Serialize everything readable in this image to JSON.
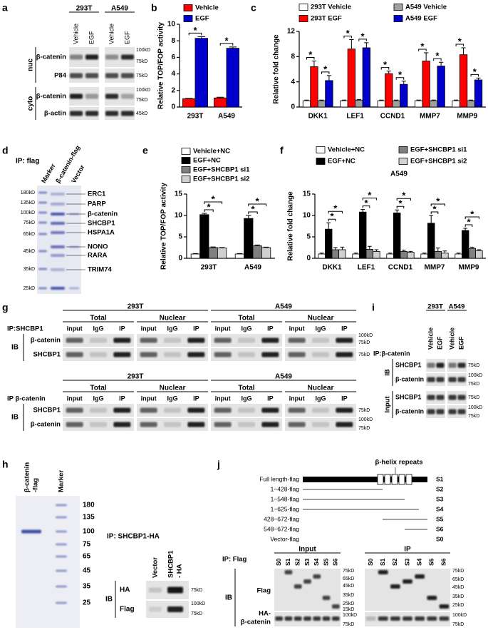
{
  "panel_letters": [
    "a",
    "b",
    "c",
    "d",
    "e",
    "f",
    "g",
    "h",
    "i",
    "j"
  ],
  "chart_data": [
    {
      "type": "bar",
      "ylabel": "Relative TOP/FOP activity",
      "categories": [
        "293T",
        "A549"
      ],
      "series": [
        {
          "name": "Vehicle",
          "color": "#ff0000",
          "values": [
            1,
            1.1
          ],
          "errors": [
            0.05,
            0.08
          ]
        },
        {
          "name": "EGF",
          "color": "#0000cc",
          "values": [
            8.3,
            7.1
          ],
          "errors": [
            0.2,
            0.15
          ]
        }
      ],
      "ylim": [
        0,
        10
      ],
      "yticks": [
        0,
        2,
        4,
        6,
        8,
        10
      ],
      "annotations": [
        "*",
        "*"
      ]
    },
    {
      "type": "bar",
      "ylabel": "Relative fold change",
      "categories": [
        "DKK1",
        "LEF1",
        "CCND1",
        "MMP7",
        "MMP9"
      ],
      "series": [
        {
          "name": "293T Vehicle",
          "color": "#ffffff",
          "values": [
            1,
            1,
            1,
            1,
            1
          ],
          "errors": [
            0.1,
            0.1,
            0.1,
            0.1,
            0.1
          ]
        },
        {
          "name": "293T EGF",
          "color": "#ff0000",
          "values": [
            6.4,
            9.2,
            5.3,
            7.3,
            8.3
          ],
          "errors": [
            0.9,
            1.5,
            0.4,
            1.3,
            1.1
          ]
        },
        {
          "name": "A549 Vehicle",
          "color": "#a0a0a0",
          "values": [
            1,
            1.1,
            1,
            1,
            1
          ],
          "errors": [
            0.1,
            0.1,
            0.1,
            0.1,
            0.1
          ]
        },
        {
          "name": "A549 EGF",
          "color": "#0000cc",
          "values": [
            4.2,
            9.4,
            3.6,
            6.5,
            4.3
          ],
          "errors": [
            0.8,
            0.8,
            0.5,
            0.6,
            0.3
          ]
        }
      ],
      "ylim": [
        0,
        12
      ],
      "yticks": [
        0,
        4,
        8,
        12
      ],
      "annotations": [
        "*",
        "*",
        "*",
        "*",
        "*",
        "*",
        "*",
        "*",
        "*",
        "*"
      ]
    },
    {
      "type": "bar",
      "ylabel": "Relative TOP/FOP  activity",
      "categories": [
        "293T",
        "A549"
      ],
      "series": [
        {
          "name": "Vehicle+NC",
          "color": "#ffffff",
          "values": [
            1,
            1
          ],
          "errors": [
            0.1,
            0.1
          ]
        },
        {
          "name": "EGF+NC",
          "color": "#000000",
          "values": [
            10.2,
            9.3
          ],
          "errors": [
            0.3,
            0.7
          ]
        },
        {
          "name": "EGF+SHCBP1 si1",
          "color": "#808080",
          "values": [
            2.5,
            2.9
          ],
          "errors": [
            0.15,
            0.2
          ]
        },
        {
          "name": "EGF+SHCBP1 si2",
          "color": "#d0d0d0",
          "values": [
            2.4,
            2.5
          ],
          "errors": [
            0.1,
            0.1
          ]
        }
      ],
      "ylim": [
        0,
        15
      ],
      "yticks": [
        0,
        5,
        10,
        15
      ],
      "annotations": [
        "*",
        "*",
        "*",
        "*"
      ]
    },
    {
      "type": "bar",
      "title": "A549",
      "ylabel": "Relative fold change",
      "categories": [
        "DKK1",
        "LEF1",
        "CCND1",
        "MMP7",
        "MMP9"
      ],
      "series": [
        {
          "name": "Vehicle+NC",
          "color": "#ffffff",
          "values": [
            1,
            1,
            1,
            1,
            1
          ],
          "errors": [
            0.2,
            0.2,
            0.2,
            0.2,
            0.2
          ]
        },
        {
          "name": "EGF+NC",
          "color": "#000000",
          "values": [
            6.8,
            10.8,
            10.6,
            8.2,
            6.5
          ],
          "errors": [
            1.5,
            0.6,
            0.7,
            1.8,
            0.5
          ]
        },
        {
          "name": "EGF+SHCBP1 si1",
          "color": "#808080",
          "values": [
            2,
            2.1,
            1.6,
            1.6,
            2.3
          ],
          "errors": [
            0.5,
            0.7,
            0.3,
            0.8,
            0.3
          ]
        },
        {
          "name": "EGF+SHCBP1 si2",
          "color": "#d0d0d0",
          "values": [
            2,
            1.6,
            1.4,
            1.2,
            1.8
          ],
          "errors": [
            0.6,
            0.4,
            0.2,
            0.5,
            0.2
          ]
        }
      ],
      "ylim": [
        0,
        15
      ],
      "yticks": [
        0,
        5,
        10,
        15
      ],
      "annotations": [
        "*",
        "*",
        "*",
        "*",
        "*",
        "*",
        "*",
        "*",
        "*",
        "*"
      ]
    }
  ],
  "panels": {
    "a": {
      "cell_lines": [
        "293T",
        "A549"
      ],
      "lanes": [
        "Vehicle",
        "EGF",
        "Vehicle",
        "EGF"
      ],
      "fractions": [
        "nuc",
        "cyto"
      ],
      "rows": [
        "β-catenin",
        "P84",
        "β-catenin",
        "β-actin"
      ],
      "markers": [
        "100kD",
        "75kD",
        "75kD",
        "100kD",
        "75kD",
        "45kD"
      ]
    },
    "d": {
      "ip": "IP: flag",
      "lanes": [
        "Marker",
        "β-catenin-flag",
        "Vector"
      ],
      "markers": [
        "180kD",
        "135kD",
        "100kD",
        "75kD",
        "65kD",
        "45kD",
        "35kD",
        "25kD"
      ],
      "proteins": [
        "ERC1",
        "PARP",
        "β-catenin",
        "SHCBP1",
        "HSPA1A",
        "NONO",
        "RARA",
        "TRIM74"
      ]
    },
    "g": {
      "top": {
        "cell_lines": [
          "293T",
          "A549"
        ],
        "fractions": [
          "Total",
          "Nuclear",
          "Total",
          "Nuclear"
        ],
        "ip": "IP:SHCBP1",
        "lanes": [
          "input",
          "IgG",
          "IP",
          "input",
          "IgG",
          "IP",
          "input",
          "IgG",
          "IP",
          "input",
          "IgG",
          "IP"
        ],
        "ib": "IB",
        "rows": [
          "β-catenin",
          "SHCBP1"
        ],
        "markers": [
          "100kD",
          "75kD",
          "75kD"
        ]
      },
      "bottom": {
        "cell_lines": [
          "293T",
          "A549"
        ],
        "fractions": [
          "Total",
          "Nuclear",
          "Total",
          "Nuclear"
        ],
        "ip": "IP β-catenin",
        "lanes": [
          "input",
          "IgG",
          "IP",
          "input",
          "IgG",
          "IP",
          "input",
          "IgG",
          "IP",
          "input",
          "IgG",
          "IP"
        ],
        "ib": "IB",
        "rows": [
          "SHCBP1",
          "β-catenin"
        ],
        "markers": [
          "75kD",
          "100kD",
          "75kD"
        ]
      }
    },
    "h": {
      "gel_lanes": [
        [
          "β-catenin",
          "-flag"
        ],
        [
          "Marker"
        ]
      ],
      "ladder": [
        180,
        135,
        100,
        75,
        65,
        45,
        35,
        25
      ],
      "ip": "IP: SHCBP1-HA",
      "blot_lanes": [
        [
          "Vector"
        ],
        [
          "SHCBP1",
          "- HA"
        ]
      ],
      "ib": "IB",
      "rows": [
        "HA",
        "Flag"
      ],
      "markers": [
        "75kD",
        "100kD",
        "75kD"
      ]
    },
    "i": {
      "cell_lines": [
        "293T",
        "A549"
      ],
      "lanes": [
        "Vehicle",
        "EGF",
        "Vehicle",
        "EGF"
      ],
      "ip": "IP:β-catenin",
      "groups": [
        {
          "label": "IB",
          "rows": [
            "SHCBP1",
            "β-catenin"
          ],
          "markers": [
            "75kD",
            "100kD",
            "75kD"
          ]
        },
        {
          "label": "Input",
          "rows": [
            "SHCBP1",
            "β-catenin"
          ],
          "markers": [
            "75kD",
            "100kD",
            "75kD"
          ]
        }
      ]
    },
    "j": {
      "domain": "β-helix repeats",
      "constructs": [
        {
          "name": "Full length-flag",
          "id": "S1"
        },
        {
          "name": "1~428-flag",
          "id": "S2"
        },
        {
          "name": "1~548-flag",
          "id": "S3"
        },
        {
          "name": "1~625-flag",
          "id": "S4"
        },
        {
          "name": "428~672-flag",
          "id": "S5"
        },
        {
          "name": "548~672-flag",
          "id": "S6"
        },
        {
          "name": "Vector-flag",
          "id": "S0"
        }
      ],
      "ip": "IP: Flag",
      "ib": "IB",
      "rows": [
        [
          "Flag"
        ],
        [
          "HA-",
          "β-catenin"
        ]
      ],
      "blocks": [
        {
          "title": "Input",
          "lanes": [
            "S0",
            "S1",
            "S2",
            "S3",
            "S4",
            "S5",
            "S6"
          ],
          "markers": [
            "75kD",
            "65kD",
            "45kD",
            "35kD",
            "25kD",
            "15kD",
            "100kD",
            "75kD"
          ]
        },
        {
          "title": "IP",
          "lanes": [
            "S0",
            "S1",
            "S2",
            "S3",
            "S4",
            "S5",
            "S6"
          ],
          "markers": [
            "75kD",
            "65kD",
            "45kD",
            "35kD",
            "25kD",
            "100kD",
            "75kD"
          ]
        }
      ]
    }
  }
}
